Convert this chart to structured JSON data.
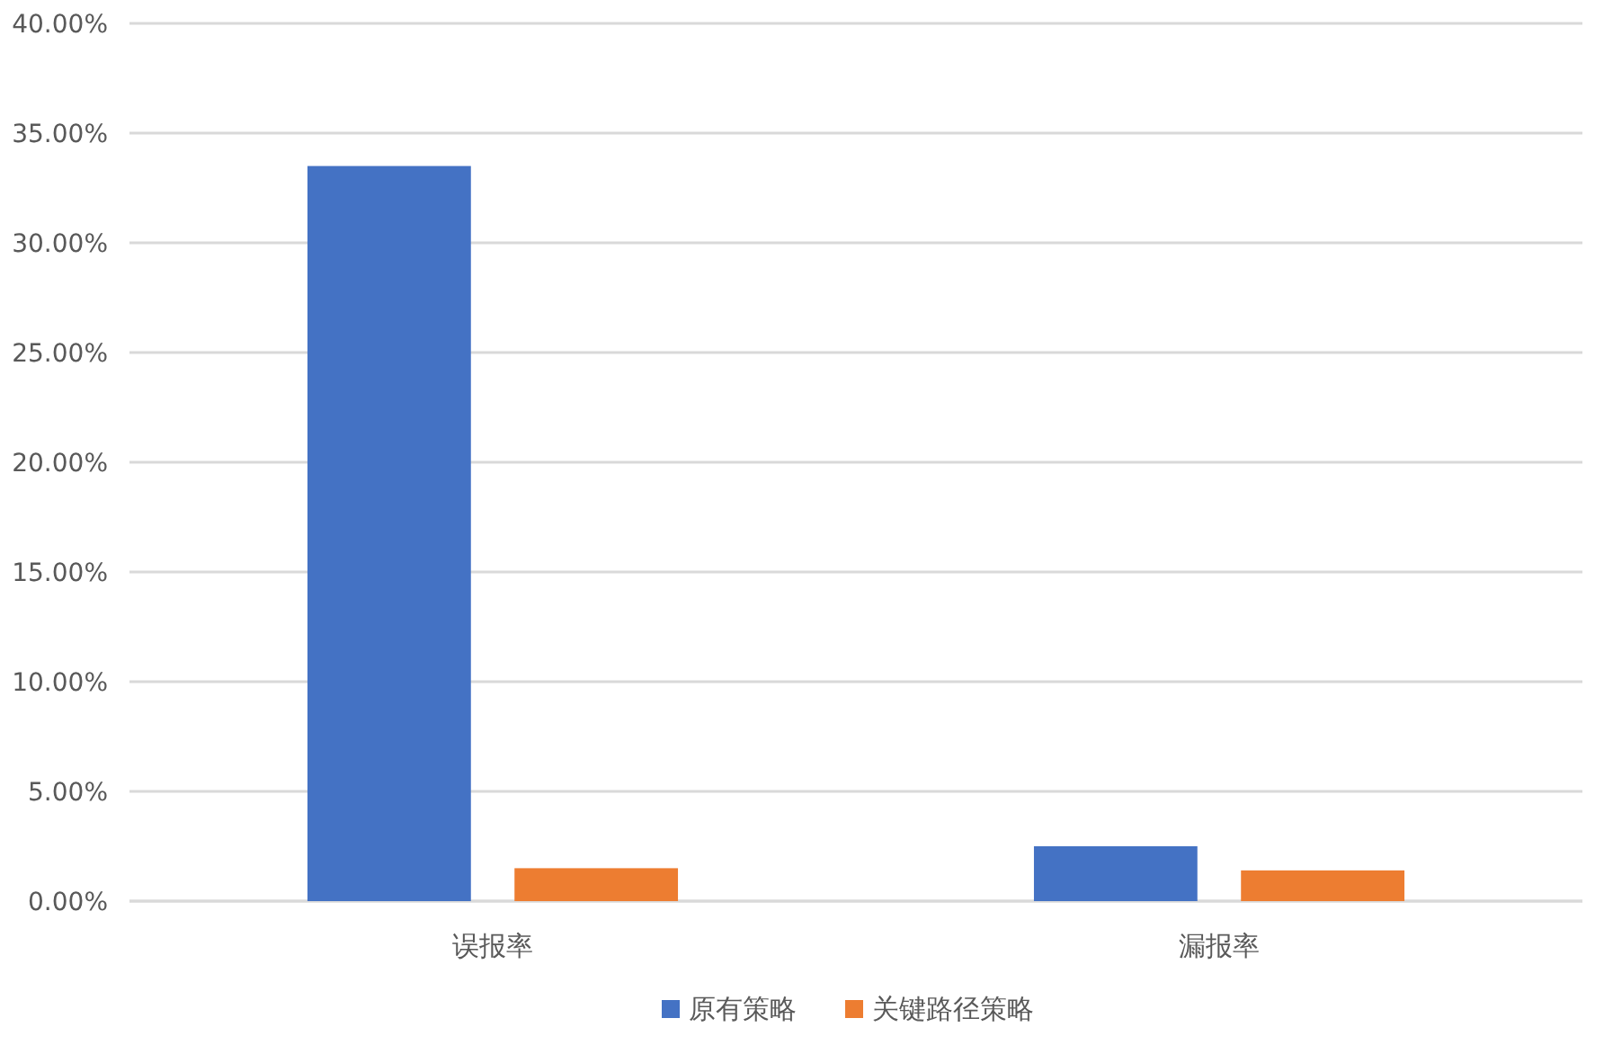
{
  "chart_data": {
    "type": "bar",
    "categories": [
      "误报率",
      "漏报率"
    ],
    "series": [
      {
        "name": "原有策略",
        "color": "#4472c4",
        "values": [
          33.5,
          2.5
        ]
      },
      {
        "name": "关键路径策略",
        "color": "#ed7d31",
        "values": [
          1.5,
          1.4
        ]
      }
    ],
    "ylim": [
      0,
      40
    ],
    "yticks": [
      {
        "value": 0,
        "label": "0.00%"
      },
      {
        "value": 5,
        "label": "5.00%"
      },
      {
        "value": 10,
        "label": "10.00%"
      },
      {
        "value": 15,
        "label": "15.00%"
      },
      {
        "value": 20,
        "label": "20.00%"
      },
      {
        "value": 25,
        "label": "25.00%"
      },
      {
        "value": 30,
        "label": "30.00%"
      },
      {
        "value": 35,
        "label": "35.00%"
      },
      {
        "value": 40,
        "label": "40.00%"
      }
    ],
    "grid": "y",
    "legend": "bottom"
  }
}
